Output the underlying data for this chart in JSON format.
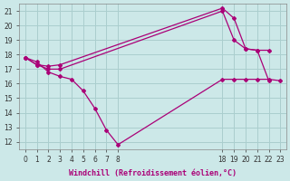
{
  "xlabel": "Windchill (Refroidissement éolien,°C)",
  "bg_color": "#cce8e8",
  "grid_color": "#aacece",
  "line_color": "#aa0077",
  "curves": [
    {
      "x": [
        0,
        1,
        2,
        3,
        4,
        5,
        6,
        7,
        8,
        18,
        19,
        20,
        21,
        22,
        23
      ],
      "y": [
        17.8,
        17.5,
        16.8,
        16.5,
        16.3,
        15.5,
        14.3,
        12.8,
        11.8,
        16.3,
        16.3,
        16.3,
        16.3,
        16.3,
        16.2
      ]
    },
    {
      "x": [
        0,
        1,
        2,
        3,
        18,
        19,
        20,
        21,
        22
      ],
      "y": [
        17.8,
        17.3,
        17.0,
        17.0,
        21.0,
        19.0,
        18.4,
        18.3,
        18.3
      ]
    },
    {
      "x": [
        0,
        1,
        2,
        3,
        18,
        19,
        20,
        21,
        22
      ],
      "y": [
        17.8,
        17.3,
        17.2,
        17.3,
        21.2,
        20.5,
        18.4,
        18.3,
        16.2
      ]
    }
  ],
  "xticks_real": [
    0,
    1,
    2,
    3,
    4,
    5,
    6,
    7,
    8,
    18,
    19,
    20,
    21,
    22,
    23
  ],
  "yticks": [
    12,
    13,
    14,
    15,
    16,
    17,
    18,
    19,
    20,
    21
  ],
  "ylim": [
    11.5,
    21.5
  ]
}
